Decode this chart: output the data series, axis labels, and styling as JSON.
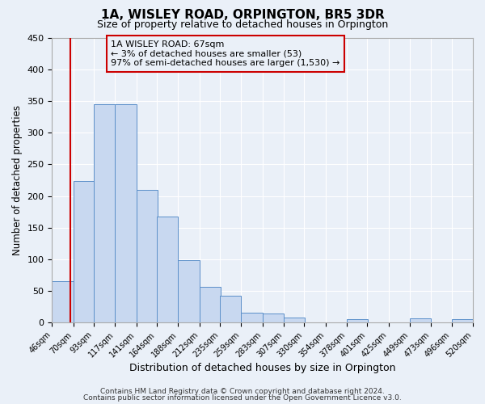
{
  "title": "1A, WISLEY ROAD, ORPINGTON, BR5 3DR",
  "subtitle": "Size of property relative to detached houses in Orpington",
  "xlabel": "Distribution of detached houses by size in Orpington",
  "ylabel": "Number of detached properties",
  "bar_left_edges": [
    46,
    70,
    93,
    117,
    141,
    164,
    188,
    212,
    235,
    259,
    283,
    307,
    330,
    354,
    378,
    401,
    425,
    449,
    473,
    496
  ],
  "bar_heights": [
    65,
    224,
    345,
    345,
    209,
    167,
    98,
    57,
    43,
    16,
    15,
    8,
    0,
    0,
    6,
    0,
    0,
    7,
    0,
    6
  ],
  "bin_width": 24,
  "tick_labels": [
    "46sqm",
    "70sqm",
    "93sqm",
    "117sqm",
    "141sqm",
    "164sqm",
    "188sqm",
    "212sqm",
    "235sqm",
    "259sqm",
    "283sqm",
    "307sqm",
    "330sqm",
    "354sqm",
    "378sqm",
    "401sqm",
    "425sqm",
    "449sqm",
    "473sqm",
    "496sqm",
    "520sqm"
  ],
  "bar_fill_color": "#c8d8f0",
  "bar_edge_color": "#5b8fc9",
  "property_line_x": 67,
  "property_line_color": "#cc0000",
  "annotation_box_color": "#cc0000",
  "annotation_text_line1": "1A WISLEY ROAD: 67sqm",
  "annotation_text_line2": "← 3% of detached houses are smaller (53)",
  "annotation_text_line3": "97% of semi-detached houses are larger (1,530) →",
  "ylim": [
    0,
    450
  ],
  "yticks": [
    0,
    50,
    100,
    150,
    200,
    250,
    300,
    350,
    400,
    450
  ],
  "background_color": "#eaf0f8",
  "grid_color": "#ffffff",
  "footer_line1": "Contains HM Land Registry data © Crown copyright and database right 2024.",
  "footer_line2": "Contains public sector information licensed under the Open Government Licence v3.0."
}
